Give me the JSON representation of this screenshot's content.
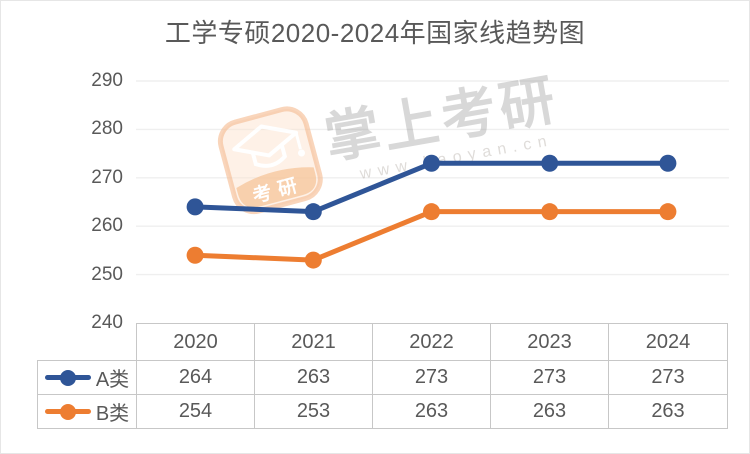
{
  "title": "工学专硕2020-2024年国家线趋势图",
  "watermark": {
    "brand": "掌上考研",
    "url": "www.kaoyan.cn",
    "logo_text": "考研"
  },
  "colors": {
    "series_a": "#2F5597",
    "series_b": "#ED7D31",
    "axis_text": "#595959",
    "gridline": "#EFEFEF",
    "table_border": "#C7C7C7",
    "watermark_orange": "#F4B98C"
  },
  "chart_data": {
    "type": "line",
    "title": "工学专硕2020-2024年国家线趋势图",
    "categories": [
      "2020",
      "2021",
      "2022",
      "2023",
      "2024"
    ],
    "series": [
      {
        "name": "A类",
        "color": "#2F5597",
        "values": [
          264,
          263,
          273,
          273,
          273
        ]
      },
      {
        "name": "B类",
        "color": "#ED7D31",
        "values": [
          254,
          253,
          263,
          263,
          263
        ]
      }
    ],
    "xlabel": "",
    "ylabel": "",
    "ylim": [
      240,
      290
    ],
    "y_ticks": [
      290,
      280,
      270,
      260,
      250,
      240
    ],
    "grid": true,
    "marker": "circle",
    "legend_position": "data-table-left"
  }
}
